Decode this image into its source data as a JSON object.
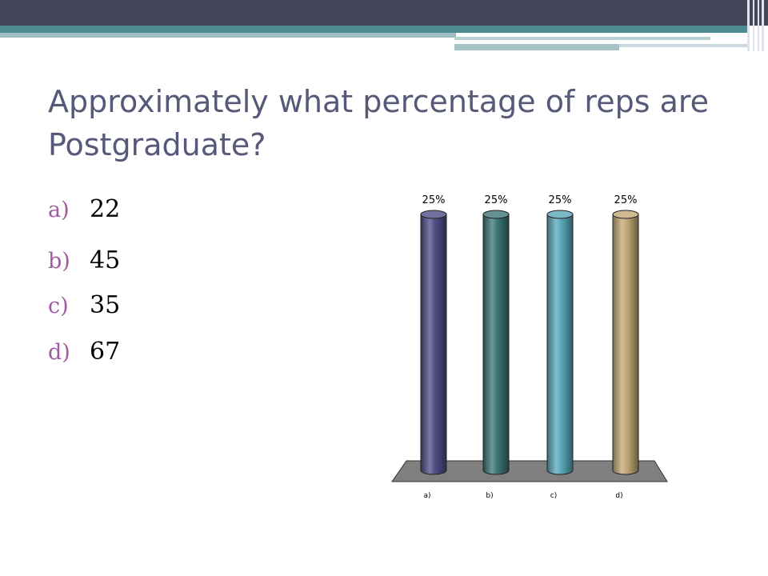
{
  "slide": {
    "title": "Approximately what percentage of reps are Postgraduate?",
    "options": [
      {
        "letter": "a)",
        "value": "22"
      },
      {
        "letter": "b)",
        "value": "45"
      },
      {
        "letter": "c)",
        "value": "35"
      },
      {
        "letter": "d)",
        "value": "67"
      }
    ]
  },
  "colors": {
    "header_dark": "#434659",
    "header_teal": "#4b8a90",
    "title": "#565a78",
    "option_letter": "#a05aa0"
  },
  "chart_data": {
    "type": "bar",
    "style": "3d-cylinder",
    "categories": [
      "a)",
      "b)",
      "c)",
      "d)"
    ],
    "values": [
      25,
      25,
      25,
      25
    ],
    "data_labels": [
      "25%",
      "25%",
      "25%",
      "25%"
    ],
    "colors": [
      "#4e4f87",
      "#3e7578",
      "#5aa8ba",
      "#c2a876"
    ],
    "ylim": [
      0,
      25
    ],
    "grid": false,
    "legend": "none"
  }
}
